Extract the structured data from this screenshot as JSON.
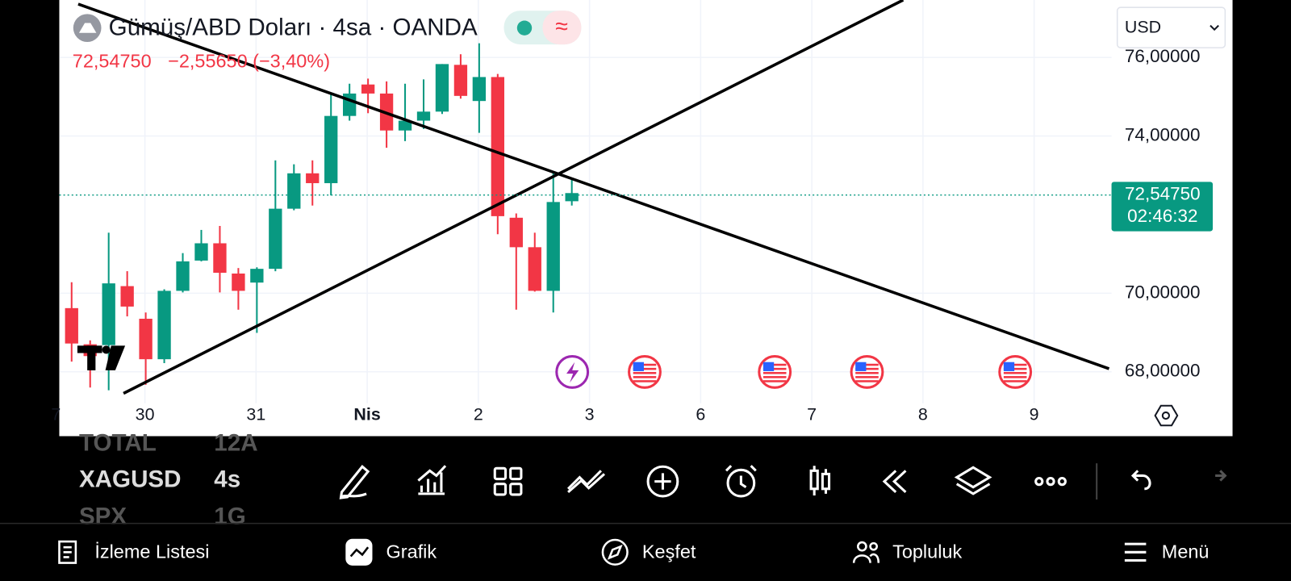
{
  "header": {
    "title": "Gümüş/ABD Doları · 4sa · OANDA",
    "last": "72,54750",
    "change": "−2,55650 (−3,40%)",
    "currency": "USD"
  },
  "price_label": {
    "price": "72,54750",
    "countdown": "02:46:32"
  },
  "chart_data": {
    "type": "candlestick",
    "up_color": "#089981",
    "down_color": "#f23645",
    "open": [
      69.62,
      68.7,
      68.68,
      70.18,
      69.35,
      68.32,
      70.06,
      70.83,
      71.27,
      70.5,
      70.27,
      70.62,
      72.15,
      73.05,
      72.8,
      74.51,
      75.31,
      75.08,
      74.14,
      74.39,
      74.62,
      75.81,
      74.89,
      75.5,
      71.92,
      71.17,
      70.06,
      72.34
    ],
    "high": [
      70.28,
      68.8,
      71.54,
      70.56,
      69.51,
      70.1,
      71.02,
      71.61,
      71.71,
      70.64,
      70.66,
      73.38,
      73.28,
      73.38,
      75.06,
      75.33,
      75.46,
      75.39,
      75.33,
      75.44,
      75.83,
      76.08,
      76.36,
      75.58,
      72.03,
      71.54,
      73.07,
      72.91
    ],
    "low": [
      68.26,
      67.6,
      67.53,
      69.41,
      67.67,
      68.22,
      70.02,
      70.81,
      70.02,
      69.58,
      68.99,
      70.56,
      72.11,
      72.23,
      72.49,
      74.39,
      74.58,
      73.7,
      73.87,
      74.18,
      74.56,
      74.95,
      74.08,
      71.5,
      69.58,
      70.04,
      69.51,
      72.23
    ],
    "close": [
      68.72,
      68.4,
      70.25,
      69.66,
      68.32,
      70.06,
      70.81,
      71.27,
      70.52,
      70.06,
      70.62,
      72.15,
      73.05,
      72.8,
      74.51,
      75.08,
      75.08,
      74.14,
      74.39,
      74.62,
      75.83,
      75.02,
      75.5,
      71.96,
      71.17,
      70.06,
      72.32,
      72.5475
    ],
    "xlabels": [
      "7",
      "30",
      "31",
      "Nis",
      "2",
      "3",
      "6",
      "7",
      "8",
      "9"
    ],
    "ylim": [
      67.2,
      77.46
    ],
    "yticks": [
      {
        "value": 68,
        "label": "68,00000"
      },
      {
        "value": 70,
        "label": "70,00000"
      },
      {
        "value": 74,
        "label": "74,00000"
      },
      {
        "value": 76,
        "label": "76,00000"
      }
    ],
    "grid": true
  },
  "watchlist": [
    [
      "TOTAL",
      "12A"
    ],
    [
      "XAGUSD",
      "4s"
    ],
    [
      "SPX",
      "1G"
    ]
  ],
  "nav": [
    "İzleme Listesi",
    "Grafik",
    "Keşfet",
    "Topluluk",
    "Menü"
  ]
}
